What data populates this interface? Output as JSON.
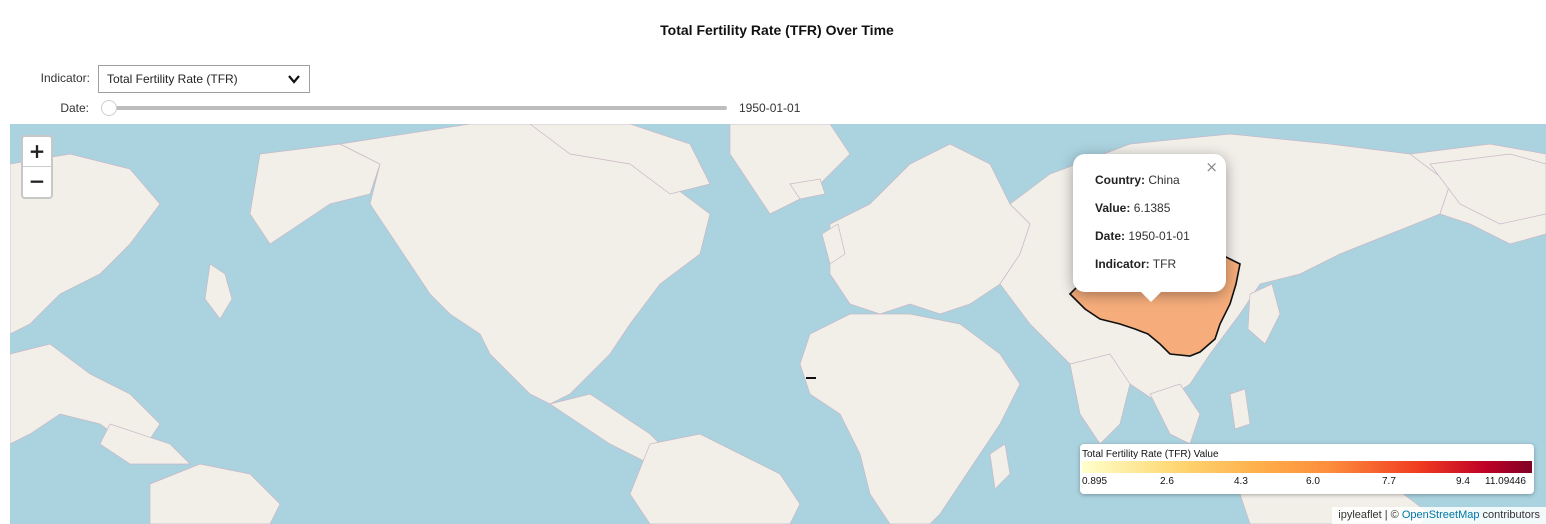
{
  "title": "Total Fertility Rate (TFR) Over Time",
  "controls": {
    "indicator_label": "Indicator:",
    "indicator_value": "Total Fertility Rate (TFR)",
    "date_label": "Date:",
    "date_value": "1950-01-01",
    "date_slider_position": 0.0
  },
  "map": {
    "zoom_in": "+",
    "zoom_out": "−",
    "highlighted_country": "China",
    "highlight_color": "#f6ad7b",
    "ocean_color": "#aad3df",
    "land_color": "#f2efe9",
    "popup": {
      "close": "×",
      "rows": [
        {
          "key": "Country:",
          "value": "China"
        },
        {
          "key": "Value:",
          "value": "6.1385"
        },
        {
          "key": "Date:",
          "value": "1950-01-01"
        },
        {
          "key": "Indicator:",
          "value": "TFR"
        }
      ]
    },
    "legend": {
      "title": "Total Fertility Rate (TFR) Value",
      "ticks": [
        "0.895",
        "2.6",
        "4.3",
        "6.0",
        "7.7",
        "9.4",
        "11.09446"
      ],
      "colors": [
        "#ffffcc",
        "#fed976",
        "#feb24c",
        "#fd8d3c",
        "#f03b20",
        "#bd0026",
        "#800026"
      ]
    },
    "attribution": {
      "prefix": "ipyleaflet | © ",
      "link": "OpenStreetMap",
      "suffix": " contributors"
    }
  }
}
